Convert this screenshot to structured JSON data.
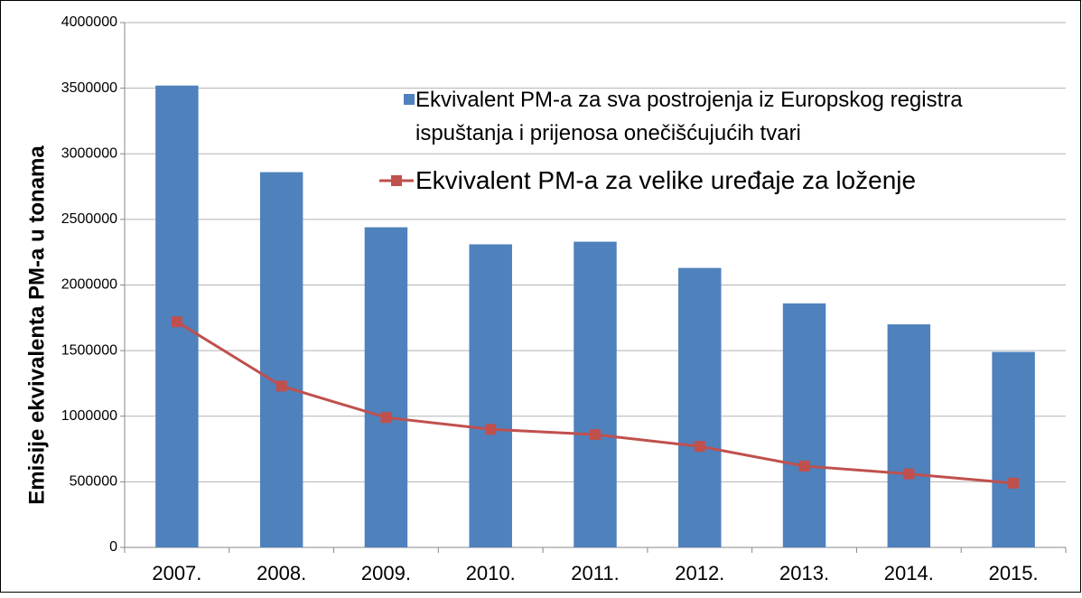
{
  "chart_data": {
    "type": "bar",
    "y_label": "Emisije ekvivalenta PM-a u tonama",
    "categories": [
      "2007.",
      "2008.",
      "2009.",
      "2010.",
      "2011.",
      "2012.",
      "2013.",
      "2014.",
      "2015."
    ],
    "series": [
      {
        "name": "Ekvivalent PM-a za sva postrojenja iz Europskog registra ispuštanja i prijenosa onečišćujućih tvari",
        "type": "bar",
        "color": "#4f81bd",
        "values": [
          3520000,
          2860000,
          2440000,
          2310000,
          2330000,
          2130000,
          1860000,
          1700000,
          1490000
        ]
      },
      {
        "name": "Ekvivalent PM-a za velike uređaje za loženje",
        "type": "line",
        "color": "#c0504d",
        "values": [
          1720000,
          1230000,
          990000,
          900000,
          860000,
          770000,
          620000,
          560000,
          490000
        ]
      }
    ],
    "ylim": [
      0,
      4000000
    ],
    "yticks": [
      0,
      500000,
      1000000,
      1500000,
      2000000,
      2500000,
      3000000,
      3500000,
      4000000
    ],
    "grid": true
  }
}
